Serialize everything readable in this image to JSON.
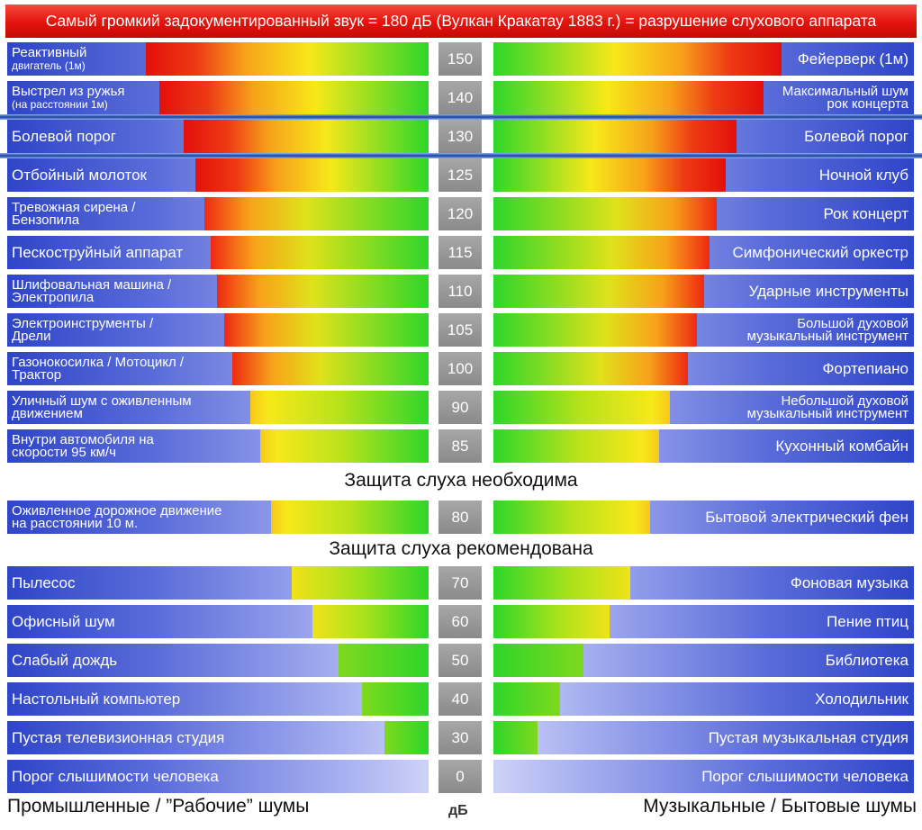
{
  "header": "Самый громкий задокументированный звук = 180 дБ (Вулкан Кракатау 1883 г.) = разрушение слухового аппарата",
  "sections": {
    "required": "Защита слуха необходима",
    "recommended": "Защита слуха рекомендована"
  },
  "footer": {
    "left": "Промышленные / ”Рабочие” шумы",
    "center": "дБ",
    "right": "Музыкальные / Бытовые шумы"
  },
  "chart_data": {
    "type": "bar",
    "ylabel": "дБ",
    "categories": [
      "150",
      "140",
      "130",
      "125",
      "120",
      "115",
      "110",
      "105",
      "100",
      "90",
      "85",
      "80",
      "70",
      "60",
      "50",
      "40",
      "30",
      "0"
    ],
    "values": [
      150,
      140,
      130,
      125,
      120,
      115,
      110,
      105,
      100,
      90,
      85,
      80,
      70,
      60,
      50,
      40,
      30,
      0
    ],
    "series": [
      {
        "name": "Промышленные / ”Рабочие” шумы",
        "labels": [
          "Реактивный двигатель (1м)",
          "Выстрел из ружья (на расстоянии 1м)",
          "Болевой порог",
          "Отбойный молоток",
          "Тревожная сирена / Бензопила",
          "Пескоструйный аппарат",
          "Шлифовальная машина / Электропила",
          "Электроинструменты / Дрели",
          "Газонокосилка / Мотоцикл / Трактор",
          "Уличный шум с оживленным движением",
          "Внутри автомобиля на скорости 95 км/ч",
          "Оживленное дорожное движение на расстоянии 10 м.",
          "Пылесос",
          "Офисный шум",
          "Слабый дождь",
          "Настольный компьютер",
          "Пустая телевизионная студия",
          "Порог слышимости человека"
        ]
      },
      {
        "name": "Музыкальные / Бытовые шумы",
        "labels": [
          "Фейерверк (1м)",
          "Максимальный шум рок концерта",
          "Болевой порог",
          "Ночной клуб",
          "Рок концерт",
          "Симфонический оркестр",
          "Ударные инструменты",
          "Большой духовой музыкальный инструмент",
          "Фортепиано",
          "Небольшой духовой музыкальный инструмент",
          "Кухонный комбайн",
          "Бытовой электрический фен",
          "Фоновая музыка",
          "Пение птиц",
          "Библиотека",
          "Холодильник",
          "Пустая музыкальная студия",
          "Порог слышимости человека"
        ]
      }
    ],
    "left_labels_display": [
      [
        "Реактивный",
        "двигатель (1м)"
      ],
      [
        "Выстрел из ружья",
        "(на расстоянии 1м)"
      ],
      [
        "Болевой порог"
      ],
      [
        "Отбойный молоток"
      ],
      [
        "Тревожная сирена /",
        "Бензопила"
      ],
      [
        "Пескоструйный аппарат"
      ],
      [
        "Шлифовальная машина /",
        "Электропила"
      ],
      [
        "Электроинструменты /",
        "Дрели"
      ],
      [
        "Газонокосилка / Мотоцикл /",
        "Трактор"
      ],
      [
        "Уличный шум с оживленным",
        "движением"
      ],
      [
        "Внутри автомобиля на",
        "скорости 95 км/ч"
      ],
      [
        "Оживленное дорожное движение",
        "на расстоянии 10 м."
      ],
      [
        "Пылесос"
      ],
      [
        "Офисный шум"
      ],
      [
        "Слабый дождь"
      ],
      [
        "Настольный компьютер"
      ],
      [
        "Пустая телевизионная студия"
      ],
      [
        "Порог слышимости человека"
      ]
    ],
    "right_labels_display": [
      [
        "Фейерверк (1м)"
      ],
      [
        "Максимальный шум",
        "рок концерта"
      ],
      [
        "Болевой порог"
      ],
      [
        "Ночной клуб"
      ],
      [
        "Рок концерт"
      ],
      [
        "Симфонический оркестр"
      ],
      [
        "Ударные инструменты"
      ],
      [
        "Большой духовой",
        "музыкальный инструмент"
      ],
      [
        "Фортепиано"
      ],
      [
        "Небольшой духовой",
        "музыкальный инструмент"
      ],
      [
        "Кухонный комбайн"
      ],
      [
        "Бытовой электрический фен"
      ],
      [
        "Фоновая музыка"
      ],
      [
        "Пение птиц"
      ],
      [
        "Библиотека"
      ],
      [
        "Холодильник"
      ],
      [
        "Пустая музыкальная студия"
      ],
      [
        "Порог слышимости человека"
      ]
    ],
    "colors": {
      "red": "#e8120c",
      "orange": "#f7a21a",
      "yellow": "#f7e81a",
      "green": "#2ed62a",
      "blue": "#2f45c8"
    }
  }
}
